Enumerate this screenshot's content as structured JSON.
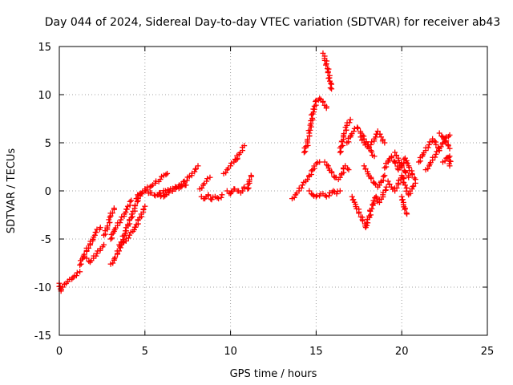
{
  "chart_data": {
    "type": "scatter",
    "title": "Day 044 of 2024, Sidereal Day-to-day VTEC variation (SDTVAR) for receiver ab43",
    "xlabel": "GPS time / hours",
    "ylabel": "SDTVAR / TECUs",
    "xlim": [
      0,
      25
    ],
    "ylim": [
      -15,
      15
    ],
    "xticks": [
      0,
      5,
      10,
      15,
      20,
      25
    ],
    "yticks": [
      -15,
      -10,
      -5,
      0,
      5,
      10,
      15
    ],
    "grid": true,
    "marker": "plus",
    "color": "#ff0000",
    "series": [
      {
        "segments": [
          [
            [
              0.0,
              -9.6
            ],
            [
              0.1,
              -10.4
            ],
            [
              0.2,
              -10.0
            ],
            [
              0.3,
              -9.7
            ],
            [
              0.4,
              -9.6
            ],
            [
              0.5,
              -9.4
            ],
            [
              0.6,
              -9.2
            ],
            [
              0.8,
              -9.0
            ],
            [
              1.0,
              -8.8
            ],
            [
              1.2,
              -8.4
            ]
          ],
          [
            [
              1.2,
              -7.7
            ],
            [
              1.4,
              -6.9
            ],
            [
              1.6,
              -6.2
            ],
            [
              1.8,
              -5.5
            ],
            [
              2.0,
              -4.8
            ],
            [
              2.2,
              -4.0
            ],
            [
              2.4,
              -3.8
            ]
          ],
          [
            [
              1.6,
              -7.0
            ],
            [
              1.8,
              -7.4
            ],
            [
              2.0,
              -7.0
            ],
            [
              2.2,
              -6.5
            ],
            [
              2.4,
              -6.0
            ],
            [
              2.6,
              -5.6
            ]
          ],
          [
            [
              2.6,
              -4.6
            ],
            [
              2.8,
              -4.0
            ],
            [
              3.0,
              -2.6
            ],
            [
              3.2,
              -1.8
            ]
          ],
          [
            [
              3.0,
              -7.6
            ],
            [
              3.2,
              -7.2
            ],
            [
              3.4,
              -6.5
            ],
            [
              3.6,
              -5.6
            ],
            [
              3.8,
              -4.6
            ],
            [
              4.0,
              -3.5
            ],
            [
              4.2,
              -2.8
            ],
            [
              4.4,
              -1.8
            ],
            [
              4.6,
              -0.8
            ],
            [
              4.8,
              -0.3
            ]
          ],
          [
            [
              3.0,
              -5.0
            ],
            [
              3.2,
              -4.2
            ],
            [
              3.4,
              -3.6
            ],
            [
              3.6,
              -3.0
            ],
            [
              3.8,
              -2.4
            ],
            [
              4.0,
              -1.6
            ],
            [
              4.2,
              -1.0
            ]
          ],
          [
            [
              3.5,
              -5.6
            ],
            [
              3.7,
              -5.4
            ],
            [
              3.9,
              -5.2
            ],
            [
              4.1,
              -4.6
            ],
            [
              4.3,
              -4.2
            ],
            [
              4.5,
              -3.5
            ],
            [
              4.7,
              -2.8
            ],
            [
              4.9,
              -2.2
            ],
            [
              5.0,
              -1.6
            ]
          ],
          [
            [
              4.5,
              -0.8
            ],
            [
              4.7,
              -0.3
            ],
            [
              5.0,
              0.0
            ],
            [
              5.3,
              -0.2
            ],
            [
              5.6,
              -0.5
            ],
            [
              5.9,
              -0.2
            ],
            [
              6.2,
              0.0
            ],
            [
              6.5,
              0.2
            ],
            [
              6.8,
              0.2
            ],
            [
              7.1,
              0.4
            ],
            [
              7.4,
              0.6
            ]
          ],
          [
            [
              5.0,
              0.2
            ],
            [
              5.3,
              0.4
            ],
            [
              5.6,
              0.8
            ],
            [
              5.9,
              1.2
            ],
            [
              6.1,
              1.6
            ],
            [
              6.3,
              1.8
            ]
          ],
          [
            [
              5.8,
              -0.4
            ],
            [
              6.1,
              -0.6
            ],
            [
              6.4,
              -0.2
            ],
            [
              6.7,
              0.2
            ],
            [
              7.0,
              0.6
            ],
            [
              7.3,
              1.0
            ],
            [
              7.6,
              1.5
            ],
            [
              7.9,
              2.0
            ],
            [
              8.1,
              2.6
            ]
          ],
          [
            [
              8.3,
              -0.6
            ],
            [
              8.5,
              -0.8
            ],
            [
              8.7,
              -0.4
            ],
            [
              8.9,
              -0.9
            ],
            [
              9.1,
              -0.6
            ],
            [
              9.3,
              -0.8
            ],
            [
              9.5,
              -0.4
            ]
          ],
          [
            [
              8.2,
              0.2
            ],
            [
              8.4,
              0.6
            ],
            [
              8.6,
              1.0
            ],
            [
              8.8,
              1.4
            ]
          ],
          [
            [
              9.8,
              0.0
            ],
            [
              10.0,
              -0.3
            ],
            [
              10.2,
              0.2
            ],
            [
              10.4,
              0.0
            ],
            [
              10.6,
              -0.2
            ],
            [
              10.8,
              0.4
            ]
          ],
          [
            [
              9.6,
              1.8
            ],
            [
              9.8,
              2.2
            ],
            [
              10.0,
              2.6
            ],
            [
              10.2,
              3.0
            ],
            [
              10.4,
              3.4
            ]
          ],
          [
            [
              10.3,
              3.2
            ],
            [
              10.5,
              3.8
            ],
            [
              10.7,
              4.2
            ],
            [
              10.8,
              4.7
            ]
          ],
          [
            [
              11.0,
              0.2
            ],
            [
              11.1,
              0.8
            ],
            [
              11.2,
              1.6
            ]
          ],
          [
            [
              13.6,
              -0.8
            ],
            [
              13.8,
              -0.4
            ],
            [
              14.0,
              0.0
            ],
            [
              14.2,
              0.6
            ],
            [
              14.4,
              1.0
            ],
            [
              14.6,
              1.6
            ],
            [
              14.8,
              2.2
            ],
            [
              15.0,
              2.8
            ],
            [
              15.2,
              3.0
            ]
          ],
          [
            [
              14.3,
              4.0
            ],
            [
              14.5,
              5.0
            ],
            [
              14.6,
              6.0
            ],
            [
              14.7,
              7.0
            ],
            [
              14.8,
              8.0
            ],
            [
              14.9,
              8.8
            ],
            [
              15.0,
              9.4
            ],
            [
              15.2,
              9.6
            ],
            [
              15.4,
              9.3
            ],
            [
              15.6,
              8.6
            ]
          ],
          [
            [
              15.4,
              14.3
            ],
            [
              15.5,
              14.0
            ],
            [
              15.6,
              13.2
            ],
            [
              15.7,
              12.4
            ],
            [
              15.8,
              11.4
            ],
            [
              15.9,
              10.6
            ]
          ],
          [
            [
              14.6,
              0.0
            ],
            [
              14.8,
              -0.4
            ],
            [
              15.0,
              -0.6
            ],
            [
              15.2,
              -0.5
            ],
            [
              15.4,
              -0.3
            ],
            [
              15.6,
              -0.6
            ],
            [
              15.8,
              -0.2
            ],
            [
              16.0,
              0.0
            ],
            [
              16.2,
              -0.3
            ],
            [
              16.4,
              0.0
            ]
          ],
          [
            [
              15.5,
              3.0
            ],
            [
              15.7,
              2.6
            ],
            [
              15.9,
              2.0
            ],
            [
              16.1,
              1.4
            ],
            [
              16.3,
              1.2
            ],
            [
              16.5,
              1.8
            ],
            [
              16.7,
              2.6
            ],
            [
              16.9,
              2.2
            ]
          ],
          [
            [
              16.4,
              4.0
            ],
            [
              16.6,
              5.6
            ],
            [
              16.8,
              6.8
            ],
            [
              17.0,
              7.4
            ]
          ],
          [
            [
              16.8,
              5.0
            ],
            [
              17.0,
              5.6
            ],
            [
              17.2,
              6.2
            ],
            [
              17.4,
              6.6
            ],
            [
              17.6,
              6.0
            ],
            [
              17.8,
              5.4
            ],
            [
              18.0,
              4.8
            ],
            [
              18.2,
              4.2
            ],
            [
              18.4,
              3.6
            ]
          ],
          [
            [
              17.1,
              -0.6
            ],
            [
              17.3,
              -1.4
            ],
            [
              17.5,
              -2.2
            ],
            [
              17.7,
              -3.0
            ],
            [
              17.9,
              -3.8
            ],
            [
              18.1,
              -2.6
            ],
            [
              18.3,
              -1.4
            ],
            [
              18.5,
              -0.6
            ],
            [
              18.7,
              -1.2
            ],
            [
              18.9,
              -0.4
            ],
            [
              19.1,
              0.4
            ]
          ],
          [
            [
              17.8,
              2.6
            ],
            [
              18.0,
              2.0
            ],
            [
              18.2,
              1.4
            ],
            [
              18.4,
              0.8
            ],
            [
              18.6,
              0.4
            ],
            [
              18.8,
              1.0
            ],
            [
              19.0,
              1.6
            ]
          ],
          [
            [
              17.6,
              5.6
            ],
            [
              17.8,
              5.0
            ],
            [
              18.0,
              4.6
            ],
            [
              18.2,
              4.8
            ],
            [
              18.4,
              5.4
            ],
            [
              18.6,
              6.2
            ],
            [
              18.8,
              5.6
            ],
            [
              19.0,
              5.0
            ]
          ],
          [
            [
              19.0,
              2.4
            ],
            [
              19.2,
              3.0
            ],
            [
              19.4,
              3.6
            ],
            [
              19.6,
              3.0
            ],
            [
              19.8,
              2.2
            ],
            [
              20.0,
              2.8
            ],
            [
              20.2,
              3.4
            ],
            [
              20.4,
              2.6
            ],
            [
              20.6,
              1.8
            ],
            [
              20.8,
              1.2
            ]
          ],
          [
            [
              19.2,
              1.0
            ],
            [
              19.4,
              0.4
            ],
            [
              19.6,
              0.0
            ],
            [
              19.8,
              0.8
            ],
            [
              20.0,
              1.6
            ],
            [
              20.2,
              0.6
            ],
            [
              20.4,
              -0.4
            ],
            [
              20.6,
              0.2
            ],
            [
              20.8,
              0.8
            ]
          ],
          [
            [
              20.0,
              -0.6
            ],
            [
              20.1,
              -1.2
            ],
            [
              20.2,
              -1.8
            ],
            [
              20.3,
              -2.4
            ]
          ],
          [
            [
              19.6,
              4.0
            ],
            [
              19.8,
              3.4
            ],
            [
              20.0,
              2.6
            ],
            [
              20.2,
              2.0
            ],
            [
              20.4,
              1.4
            ]
          ],
          [
            [
              21.0,
              3.0
            ],
            [
              21.2,
              3.6
            ],
            [
              21.4,
              4.2
            ],
            [
              21.6,
              4.8
            ],
            [
              21.8,
              5.4
            ],
            [
              22.0,
              4.8
            ],
            [
              22.2,
              4.2
            ]
          ],
          [
            [
              21.4,
              2.2
            ],
            [
              21.6,
              2.6
            ],
            [
              21.8,
              3.2
            ],
            [
              22.0,
              3.8
            ],
            [
              22.2,
              4.4
            ],
            [
              22.4,
              5.0
            ],
            [
              22.6,
              5.6
            ],
            [
              22.8,
              5.8
            ]
          ],
          [
            [
              22.2,
              6.0
            ],
            [
              22.4,
              5.6
            ],
            [
              22.6,
              5.2
            ],
            [
              22.7,
              4.8
            ],
            [
              22.8,
              4.4
            ]
          ],
          [
            [
              22.4,
              3.0
            ],
            [
              22.6,
              3.4
            ],
            [
              22.8,
              3.6
            ],
            [
              22.8,
              2.6
            ]
          ]
        ]
      }
    ]
  }
}
